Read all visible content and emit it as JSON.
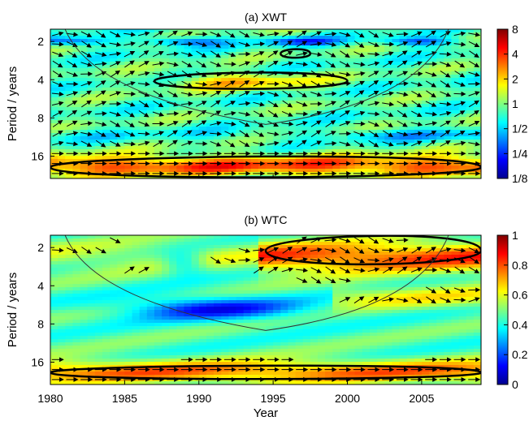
{
  "chart_data": [
    {
      "type": "heatmap",
      "title": "(a) XWT",
      "ylabel": "Period / years",
      "xlabel": "",
      "xlim": [
        1980,
        2009
      ],
      "ylim_period": [
        1.6,
        24
      ],
      "y_scale": "log2",
      "y_ticks": [
        {
          "v": 2,
          "label": "2"
        },
        {
          "v": 4,
          "label": "4"
        },
        {
          "v": 8,
          "label": "8"
        },
        {
          "v": 16,
          "label": "16"
        }
      ],
      "colorbar": {
        "scale": "log2",
        "range": [
          0.125,
          8
        ],
        "ticks": [
          {
            "v": 8,
            "label": "8"
          },
          {
            "v": 4,
            "label": "4"
          },
          {
            "v": 2,
            "label": "2"
          },
          {
            "v": 1,
            "label": "1"
          },
          {
            "v": 0.5,
            "label": "1/2"
          },
          {
            "v": 0.25,
            "label": "1/4"
          },
          {
            "v": 0.125,
            "label": "1/8"
          }
        ]
      },
      "cone_of_influence_min_year": 1994.5,
      "cone_of_influence_max_period": 9,
      "significance_regions": [
        {
          "year_start": 1987,
          "year_end": 2000,
          "period_min": 3.5,
          "period_max": 4.8
        },
        {
          "year_start": 1995.5,
          "year_end": 1997.5,
          "period_min": 2.3,
          "period_max": 2.7
        },
        {
          "year_start": 1980,
          "year_end": 2009,
          "period_min": 16,
          "period_max": 24
        }
      ]
    },
    {
      "type": "heatmap",
      "title": "(b) WTC",
      "ylabel": "Period / years",
      "xlabel": "Year",
      "xlim": [
        1980,
        2009
      ],
      "ylim_period": [
        1.6,
        24
      ],
      "y_scale": "log2",
      "x_ticks": [
        {
          "v": 1980,
          "label": "1980"
        },
        {
          "v": 1985,
          "label": "1985"
        },
        {
          "v": 1990,
          "label": "1990"
        },
        {
          "v": 1995,
          "label": "1995"
        },
        {
          "v": 2000,
          "label": "2000"
        },
        {
          "v": 2005,
          "label": "2005"
        }
      ],
      "y_ticks": [
        {
          "v": 2,
          "label": "2"
        },
        {
          "v": 4,
          "label": "4"
        },
        {
          "v": 8,
          "label": "8"
        },
        {
          "v": 16,
          "label": "16"
        }
      ],
      "colorbar": {
        "scale": "linear",
        "range": [
          0,
          1
        ],
        "ticks": [
          {
            "v": 1,
            "label": "1"
          },
          {
            "v": 0.8,
            "label": "0.8"
          },
          {
            "v": 0.6,
            "label": "0.6"
          },
          {
            "v": 0.4,
            "label": "0.4"
          },
          {
            "v": 0.2,
            "label": "0.2"
          },
          {
            "v": 0,
            "label": "0"
          }
        ]
      },
      "cone_of_influence_min_year": 1994.5,
      "cone_of_influence_max_period": 9,
      "significance_regions": [
        {
          "year_start": 1994.5,
          "year_end": 2009,
          "period_min": 1.6,
          "period_max": 2.8
        },
        {
          "year_start": 1980,
          "year_end": 2009,
          "period_min": 17,
          "period_max": 22
        }
      ]
    }
  ]
}
